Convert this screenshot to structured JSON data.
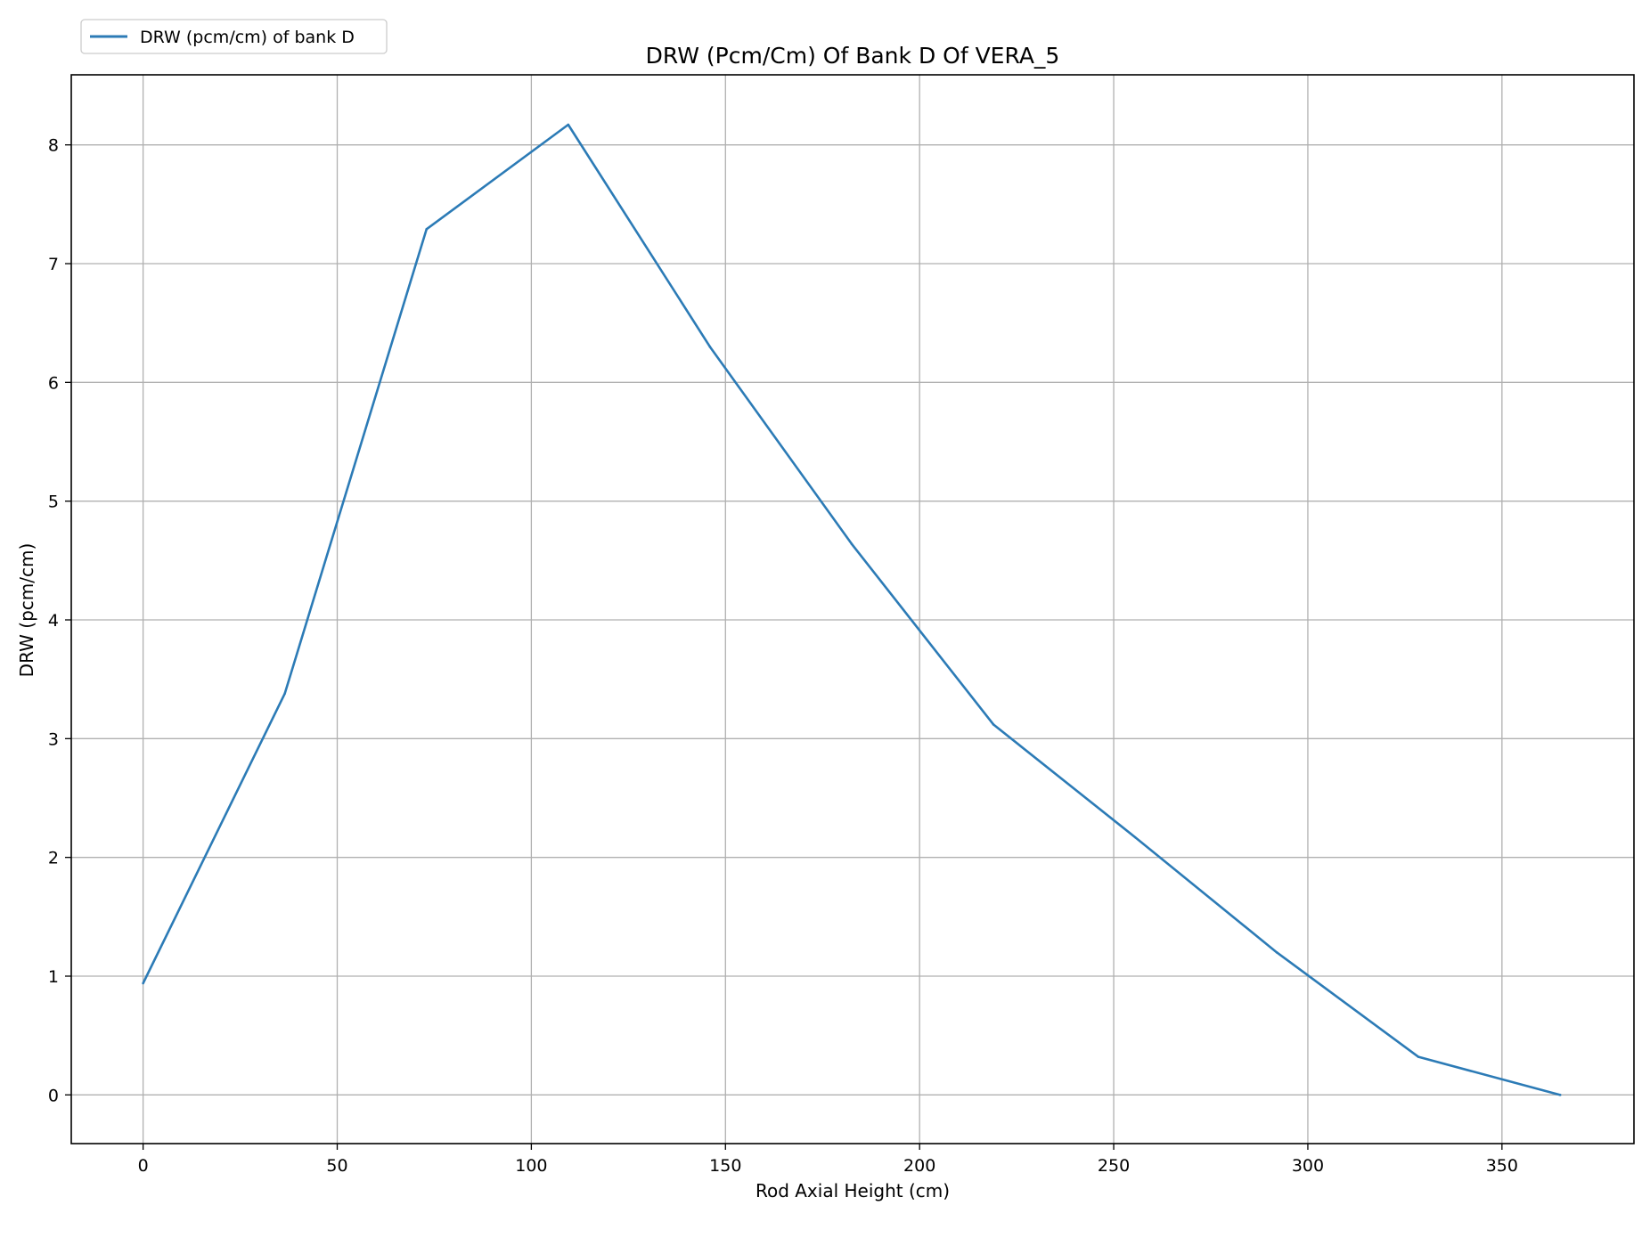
{
  "chart_data": {
    "type": "line",
    "title": "DRW (Pcm/Cm) Of Bank D Of VERA_5",
    "xlabel": "Rod Axial Height (cm)",
    "ylabel": "DRW (pcm/cm)",
    "xlim": [
      -18.5,
      384
    ],
    "ylim": [
      -0.41,
      8.59
    ],
    "xticks": [
      0,
      50,
      100,
      150,
      200,
      250,
      300,
      350
    ],
    "yticks": [
      0,
      1,
      2,
      3,
      4,
      5,
      6,
      7,
      8
    ],
    "grid": true,
    "legend_placement": "upper-left-outside",
    "series": [
      {
        "name": "DRW (pcm/cm) of bank D",
        "color": "#2c7bb6",
        "x": [
          0,
          36.5,
          73,
          109.5,
          146,
          182.5,
          219,
          255.5,
          292,
          328.5,
          365
        ],
        "y": [
          0.94,
          3.38,
          7.29,
          8.17,
          6.3,
          4.64,
          3.12,
          2.17,
          1.2,
          0.32,
          0.0
        ]
      }
    ]
  }
}
